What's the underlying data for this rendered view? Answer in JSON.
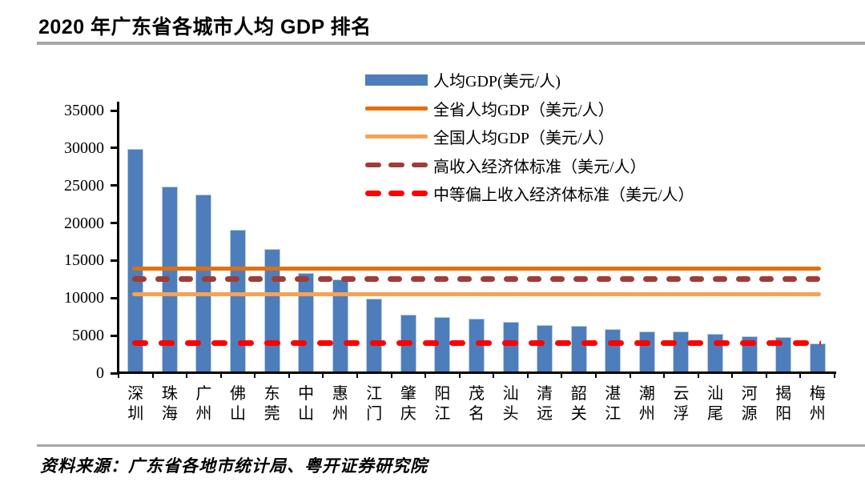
{
  "page": {
    "title": "2020 年广东省各城市人均 GDP 排名",
    "source": "资料来源：广东省各地市统计局、粤开证券研究院"
  },
  "chart_data": {
    "type": "bar",
    "title": "2020 年广东省各城市人均 GDP 排名",
    "categories": [
      "深圳",
      "珠海",
      "广州",
      "佛山",
      "东莞",
      "中山",
      "惠州",
      "江门",
      "肇庆",
      "阳江",
      "茂名",
      "汕头",
      "清远",
      "韶关",
      "湛江",
      "潮州",
      "云浮",
      "汕尾",
      "河源",
      "揭阳",
      "梅州"
    ],
    "series": [
      {
        "id": "gdp-per-capita",
        "name": "人均GDP(美元/人)",
        "type": "bar",
        "color": "#4D7EBB",
        "values": [
          29900,
          24900,
          23800,
          19100,
          16500,
          13300,
          12500,
          9900,
          7800,
          7500,
          7300,
          6800,
          6400,
          6300,
          5900,
          5600,
          5500,
          5200,
          4900,
          4800,
          3900
        ]
      },
      {
        "id": "province-avg-gdp",
        "name": "全省人均GDP（美元/人）",
        "type": "line",
        "style": "solid",
        "color": "#E2700D",
        "value": 13900
      },
      {
        "id": "national-avg-gdp",
        "name": "全国人均GDP（美元/人）",
        "type": "line",
        "style": "solid",
        "color": "#F7A155",
        "value": 10500
      },
      {
        "id": "high-income-threshold",
        "name": "高收入经济体标准（美元/人）",
        "type": "line",
        "style": "dashed",
        "color": "#A03C38",
        "value": 12535
      },
      {
        "id": "upper-middle-income-threshold",
        "name": "中等偏上收入经济体标准（美元/人）",
        "type": "line",
        "style": "dashed",
        "color": "#FF0000",
        "value": 4046
      }
    ],
    "xlabel": "",
    "ylabel": "",
    "ylim": [
      0,
      35000
    ],
    "yticks": [
      0,
      5000,
      10000,
      15000,
      20000,
      25000,
      30000,
      35000
    ],
    "grid": false,
    "legend_position": "top-center-inside"
  }
}
